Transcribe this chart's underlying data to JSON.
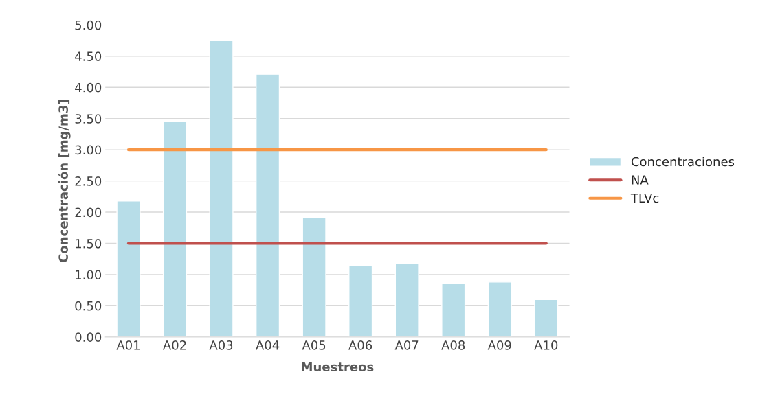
{
  "chart_data": {
    "type": "bar",
    "xlabel": "Muestreos",
    "ylabel": "Concentración [mg/m3]",
    "categories": [
      "A01",
      "A02",
      "A03",
      "A04",
      "A05",
      "A06",
      "A07",
      "A08",
      "A09",
      "A10"
    ],
    "series": [
      {
        "name": "Concentraciones",
        "color": "#b7dde8",
        "values": [
          2.18,
          3.46,
          4.75,
          4.21,
          1.92,
          1.14,
          1.18,
          0.86,
          0.88,
          0.6
        ]
      },
      {
        "name": "NA",
        "type": "line",
        "color": "#c0504d",
        "values": [
          1.5,
          1.5,
          1.5,
          1.5,
          1.5,
          1.5,
          1.5,
          1.5,
          1.5,
          1.5
        ]
      },
      {
        "name": "TLVc",
        "type": "line",
        "color": "#f79646",
        "values": [
          3.0,
          3.0,
          3.0,
          3.0,
          3.0,
          3.0,
          3.0,
          3.0,
          3.0,
          3.0
        ]
      }
    ],
    "ylim": [
      0,
      5
    ],
    "yticks": [
      {
        "value": 0,
        "label": "0.00"
      },
      {
        "value": 0.5,
        "label": "0.50"
      },
      {
        "value": 1,
        "label": "1.00"
      },
      {
        "value": 1.5,
        "label": "1.50"
      },
      {
        "value": 2,
        "label": "2.00"
      },
      {
        "value": 2.5,
        "label": "2.50"
      },
      {
        "value": 3,
        "label": "3.00"
      },
      {
        "value": 3.5,
        "label": "3.50"
      },
      {
        "value": 4,
        "label": "4.00"
      },
      {
        "value": 4.5,
        "label": "4.50"
      },
      {
        "value": 5,
        "label": "5.00"
      }
    ],
    "grid": "y",
    "legend": "right"
  }
}
